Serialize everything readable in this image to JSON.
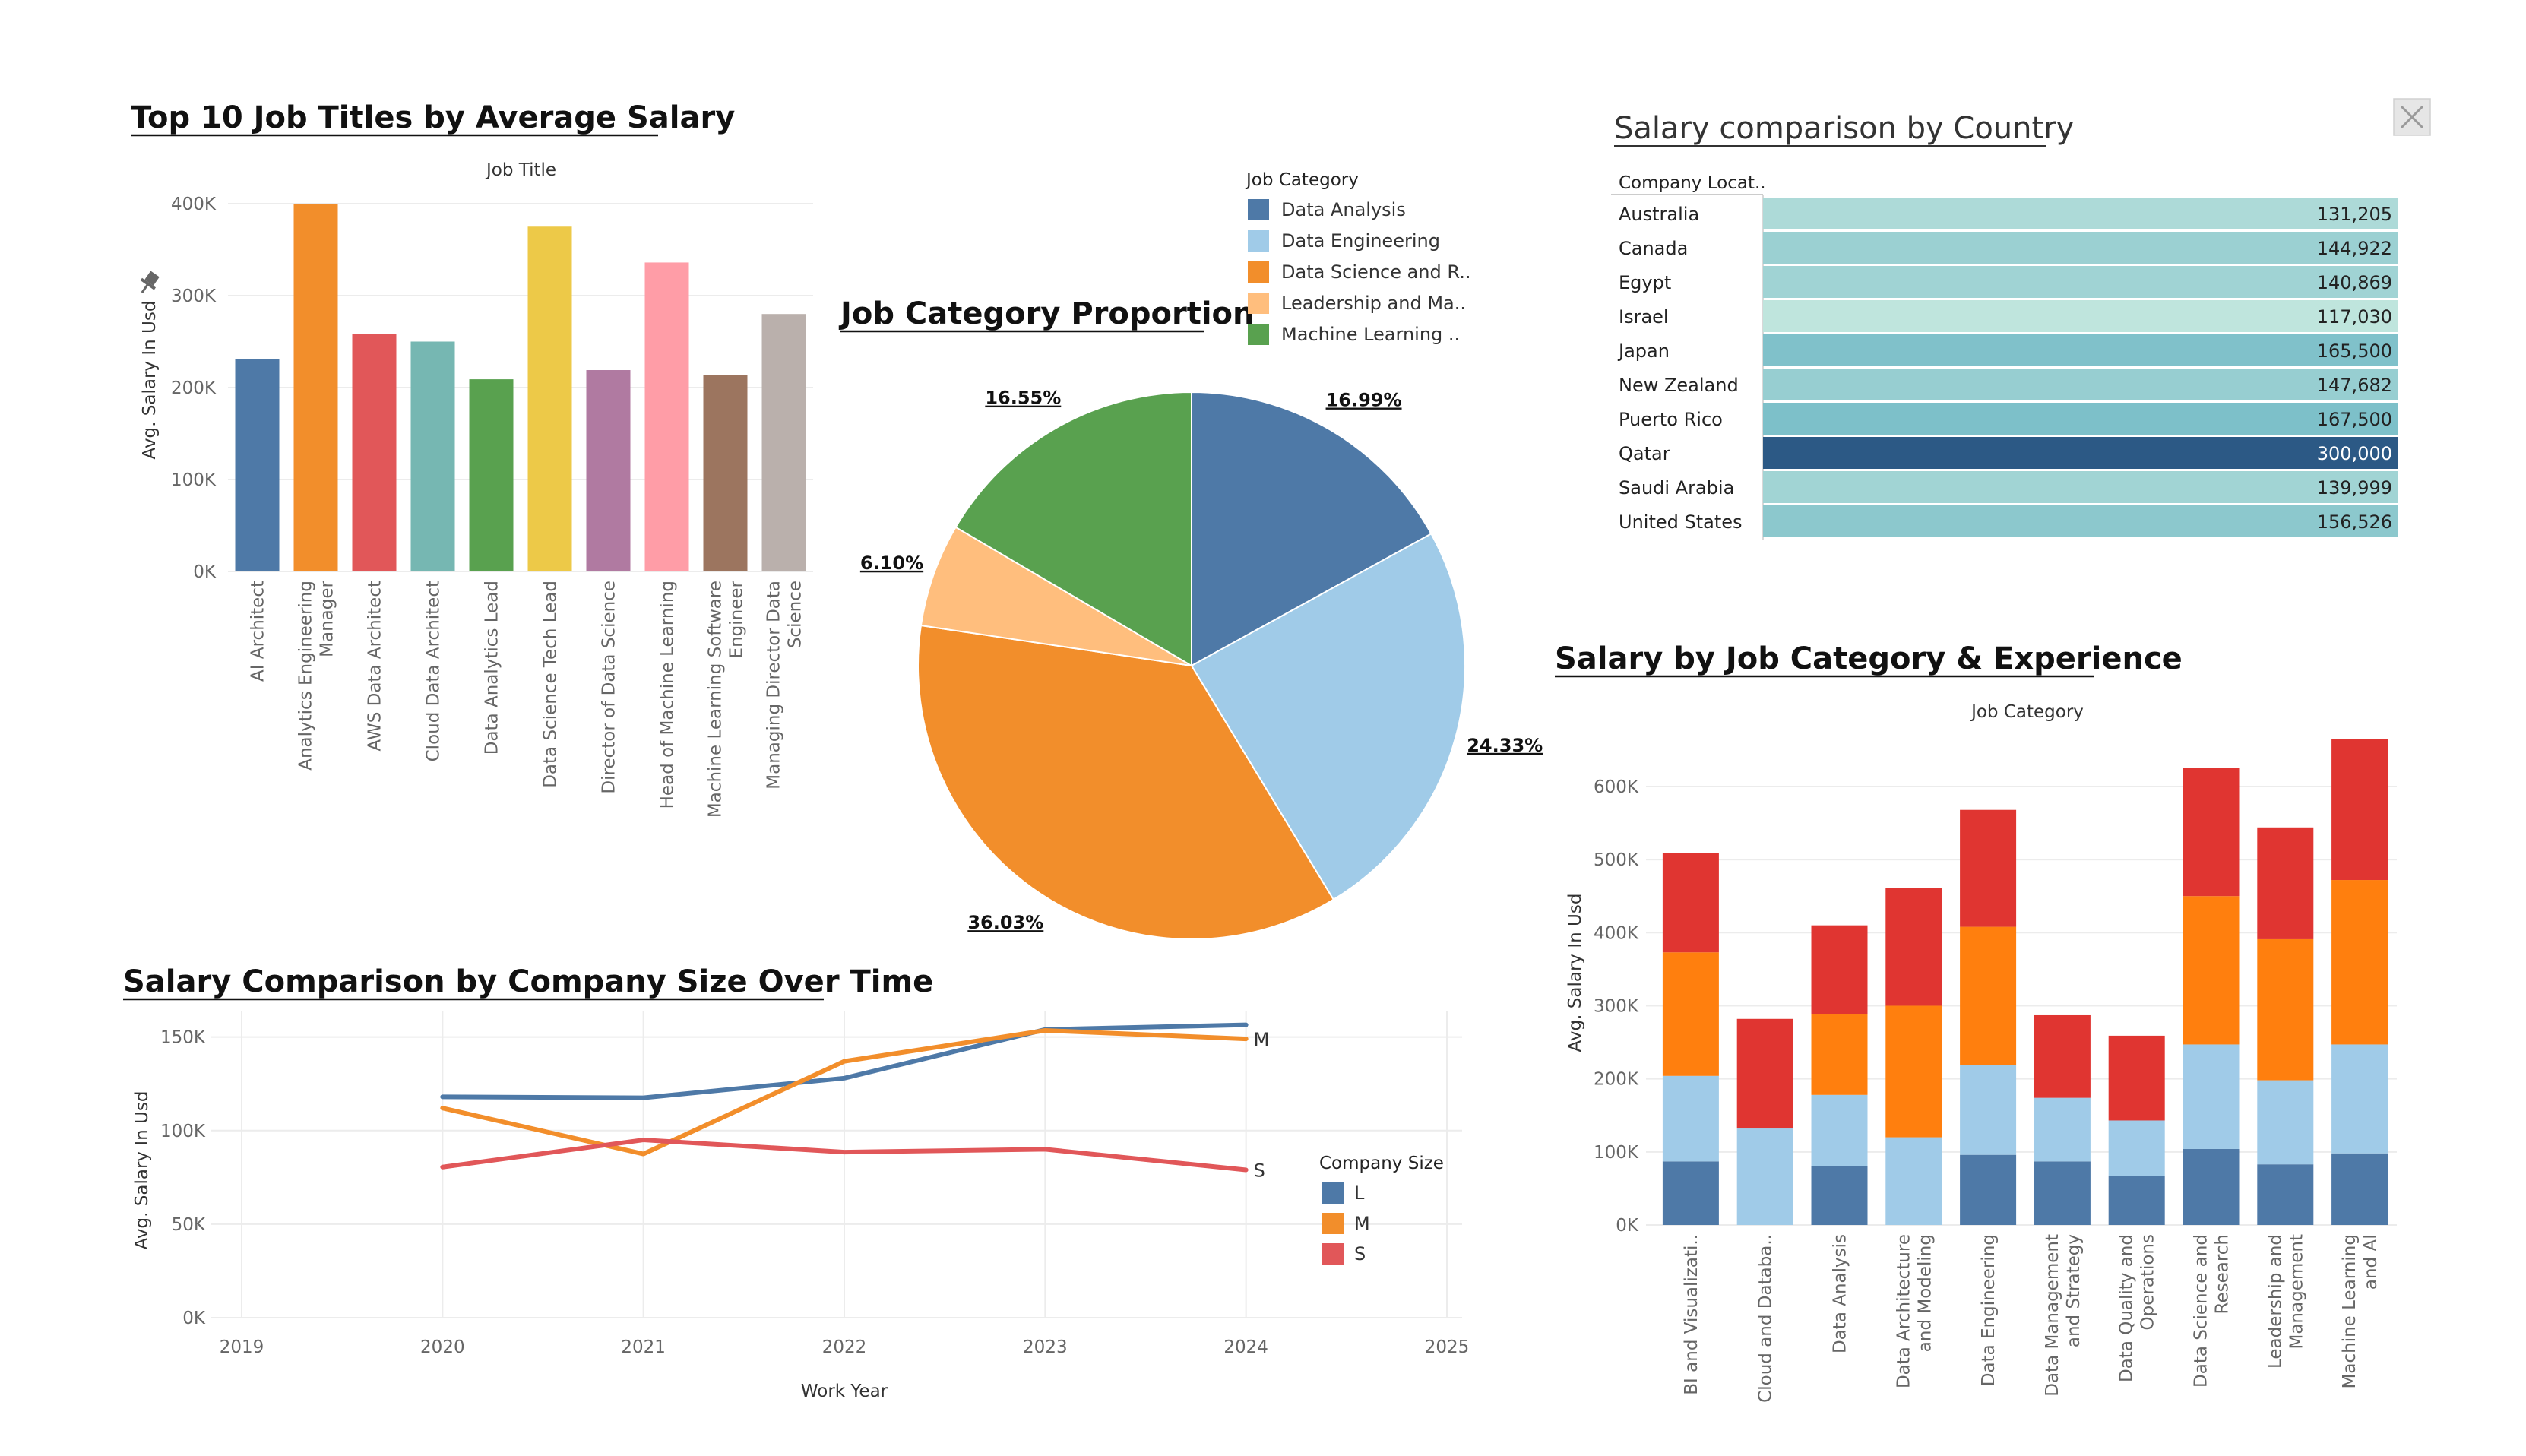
{
  "close_button": {
    "icon": "close-icon"
  },
  "chart_data": [
    {
      "id": "top_titles",
      "type": "bar",
      "title": "Top 10 Job Titles by Average Salary",
      "column_header": "Job Title",
      "ylabel": "Avg. Salary In Usd",
      "ylim": [
        0,
        400000
      ],
      "y_ticks": [
        "0K",
        "100K",
        "200K",
        "300K",
        "400K"
      ],
      "categories": [
        [
          "AI Architect"
        ],
        [
          "Analytics Engineering",
          "Manager"
        ],
        [
          "AWS Data Architect"
        ],
        [
          "Cloud Data Architect"
        ],
        [
          "Data Analytics Lead"
        ],
        [
          "Data Science Tech Lead"
        ],
        [
          "Director of Data Science"
        ],
        [
          "Head of Machine Learning"
        ],
        [
          "Machine Learning Software",
          "Engineer"
        ],
        [
          "Managing Director Data",
          "Science"
        ]
      ],
      "values": [
        231000,
        399880,
        258000,
        250000,
        209000,
        375000,
        219000,
        336000,
        214000,
        280000
      ],
      "colors": [
        "#4e79a7",
        "#f28e2b",
        "#e15759",
        "#76b7b2",
        "#59a14f",
        "#edc948",
        "#b07aa1",
        "#ff9da7",
        "#9c755f",
        "#bab0ac"
      ]
    },
    {
      "id": "category_pie",
      "type": "pie",
      "title": "Job Category Proportion",
      "legend_title": "Job Category",
      "slices": [
        {
          "label": "Data Analysis",
          "value": 16.99,
          "pct_label": "16.99%",
          "color": "#4e79a7"
        },
        {
          "label": "Data Engineering",
          "value": 24.33,
          "pct_label": "24.33%",
          "color": "#a0cbe8"
        },
        {
          "label": "Data Science and R..",
          "value": 36.03,
          "pct_label": "36.03%",
          "color": "#f28e2b"
        },
        {
          "label": "Leadership and Ma..",
          "value": 6.1,
          "pct_label": "6.10%",
          "color": "#ffbe7d"
        },
        {
          "label": "Machine Learning ..",
          "value": 16.55,
          "pct_label": "16.55%",
          "color": "#59a14f"
        }
      ]
    },
    {
      "id": "country_table",
      "type": "heatmap",
      "title": "Salary comparison by Country",
      "column_header": "Company Locat..",
      "rows": [
        {
          "country": "Australia",
          "value": 131205,
          "label": "131,205"
        },
        {
          "country": "Canada",
          "value": 144922,
          "label": "144,922"
        },
        {
          "country": "Egypt",
          "value": 140869,
          "label": "140,869"
        },
        {
          "country": "Israel",
          "value": 117030,
          "label": "117,030"
        },
        {
          "country": "Japan",
          "value": 165500,
          "label": "165,500"
        },
        {
          "country": "New Zealand",
          "value": 147682,
          "label": "147,682"
        },
        {
          "country": "Puerto Rico",
          "value": 167500,
          "label": "167,500"
        },
        {
          "country": "Qatar",
          "value": 300000,
          "label": "300,000"
        },
        {
          "country": "Saudi Arabia",
          "value": 139999,
          "label": "139,999"
        },
        {
          "country": "United States",
          "value": 156526,
          "label": "156,526"
        }
      ]
    },
    {
      "id": "size_over_time",
      "type": "line",
      "title": "Salary Comparison by Company Size Over Time",
      "xlabel": "Work Year",
      "ylabel": "Avg. Salary In Usd",
      "xlim": [
        2019,
        2025
      ],
      "x_ticks": [
        "2019",
        "2020",
        "2021",
        "2022",
        "2023",
        "2024",
        "2025"
      ],
      "ylim": [
        0,
        160000
      ],
      "y_ticks": [
        "0K",
        "50K",
        "100K",
        "150K"
      ],
      "legend_title": "Company Size",
      "x": [
        2020,
        2021,
        2022,
        2023,
        2024
      ],
      "series": [
        {
          "name": "L",
          "color": "#4e79a7",
          "values": [
            118000,
            117500,
            128000,
            154000,
            156500
          ],
          "end_label": ""
        },
        {
          "name": "M",
          "color": "#f28e2b",
          "values": [
            112000,
            87500,
            137000,
            153500,
            149000
          ],
          "end_label": "M"
        },
        {
          "name": "S",
          "color": "#e15759",
          "values": [
            80500,
            95000,
            88500,
            90000,
            79000
          ],
          "end_label": "S"
        }
      ]
    },
    {
      "id": "category_experience",
      "type": "bar",
      "stacked": true,
      "title": "Salary by Job Category & Experience",
      "column_header": "Job Category",
      "ylabel": "Avg. Salary In Usd",
      "ylim": [
        0,
        680000
      ],
      "y_ticks": [
        "0K",
        "100K",
        "200K",
        "300K",
        "400K",
        "500K",
        "600K"
      ],
      "categories": [
        [
          "BI and Visualizati.."
        ],
        [
          "Cloud and Databa.."
        ],
        [
          "Data Analysis"
        ],
        [
          "Data Architecture",
          "and Modeling"
        ],
        [
          "Data Engineering"
        ],
        [
          "Data Management",
          "and Strategy"
        ],
        [
          "Data Quality and",
          "Operations"
        ],
        [
          "Data Science and",
          "Research"
        ],
        [
          "Leadership and",
          "Management"
        ],
        [
          "Machine Learning",
          "and AI"
        ]
      ],
      "series": [
        {
          "color": "#4e79a7",
          "values": [
            87000,
            0,
            81000,
            0,
            96000,
            87000,
            67000,
            104000,
            83000,
            98000
          ]
        },
        {
          "color": "#a0cbe8",
          "values": [
            117000,
            132000,
            97000,
            120000,
            123000,
            87000,
            76000,
            143000,
            115000,
            149000
          ]
        },
        {
          "color": "#ff7f0e",
          "values": [
            169000,
            0,
            110000,
            180000,
            189000,
            0,
            0,
            203000,
            193000,
            225000
          ]
        },
        {
          "color": "#e03531",
          "values": [
            136000,
            150000,
            122000,
            161000,
            160000,
            113000,
            116000,
            175000,
            153000,
            193000
          ]
        }
      ]
    }
  ]
}
